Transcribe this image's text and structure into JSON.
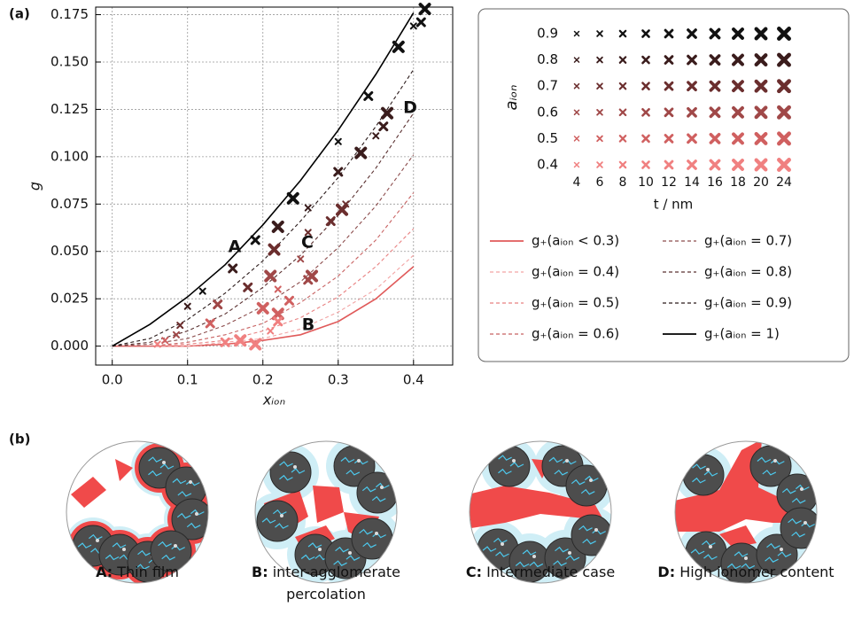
{
  "panel_a_label": "(a)",
  "panel_b_label": "(b)",
  "chart_data": {
    "type": "line",
    "x_label": "xᵢₒₙ",
    "y_label": "g",
    "x": [
      0,
      0.05,
      0.1,
      0.15,
      0.2,
      0.25,
      0.3,
      0.35,
      0.4
    ],
    "xlim": [
      -0.022,
      0.452
    ],
    "ylim": [
      -0.01,
      0.179
    ],
    "xticks": [
      {
        "value": 0,
        "label": "0.0"
      },
      0.1,
      0.2,
      0.3,
      0.4
    ],
    "yticks": [
      {
        "value": 0,
        "label": "0.000"
      },
      {
        "value": 0.025,
        "label": "0.025"
      },
      {
        "value": 0.05,
        "label": "0.050"
      },
      {
        "value": 0.075,
        "label": "0.075"
      },
      {
        "value": 0.1,
        "label": "0.100"
      },
      {
        "value": 0.125,
        "label": "0.125"
      },
      {
        "value": 0.15,
        "label": "0.150"
      },
      {
        "value": 0.175,
        "label": "0.175"
      }
    ],
    "grid": true,
    "series": [
      {
        "name": "g₊(aᵢₒₙ < 0.3)",
        "color": "#e05a5a",
        "style": "solid",
        "values": [
          0,
          0,
          0,
          0.001,
          0.003,
          0.006,
          0.013,
          0.025,
          0.042
        ]
      },
      {
        "name": "g₊(aᵢₒₙ = 0.4)",
        "color": "#f2a3a3",
        "style": "dashed",
        "values": [
          0,
          0,
          0,
          0.002,
          0.004,
          0.009,
          0.018,
          0.03,
          0.048
        ]
      },
      {
        "name": "g₊(aᵢₒₙ = 0.5)",
        "color": "#e88080",
        "style": "dashed",
        "values": [
          0,
          0,
          0.001,
          0.003,
          0.008,
          0.015,
          0.026,
          0.042,
          0.062
        ]
      },
      {
        "name": "g₊(aᵢₒₙ = 0.6)",
        "color": "#c86262",
        "style": "dashed",
        "values": [
          0,
          0,
          0.002,
          0.006,
          0.012,
          0.023,
          0.037,
          0.056,
          0.081
        ]
      },
      {
        "name": "g₊(aᵢₒₙ = 0.7)",
        "color": "#8c4c4c",
        "style": "dashed",
        "values": [
          0,
          0.001,
          0.004,
          0.011,
          0.021,
          0.034,
          0.052,
          0.074,
          0.101
        ]
      },
      {
        "name": "g₊(aᵢₒₙ = 0.8)",
        "color": "#5a3030",
        "style": "dashed",
        "values": [
          0,
          0.002,
          0.008,
          0.017,
          0.031,
          0.048,
          0.069,
          0.094,
          0.123
        ]
      },
      {
        "name": "g₊(aᵢₒₙ = 0.9)",
        "color": "#2a1a1a",
        "style": "dashed",
        "values": [
          0,
          0.004,
          0.014,
          0.028,
          0.045,
          0.066,
          0.089,
          0.116,
          0.146
        ]
      },
      {
        "name": "g₊(aᵢₒₙ = 1)",
        "color": "#000000",
        "style": "solid",
        "values": [
          0,
          0.0115,
          0.026,
          0.043,
          0.064,
          0.0875,
          0.114,
          0.1435,
          0.176
        ]
      }
    ],
    "points": [
      {
        "color": "#111111",
        "x": [
          0.12,
          0.19,
          0.24,
          0.3,
          0.34,
          0.38,
          0.4,
          0.41,
          0.415
        ],
        "y": [
          0.029,
          0.056,
          0.078,
          0.108,
          0.132,
          0.158,
          0.169,
          0.171,
          0.178
        ]
      },
      {
        "color": "#3a1c1c",
        "x": [
          0.1,
          0.16,
          0.22,
          0.26,
          0.3,
          0.33,
          0.35,
          0.36,
          0.365
        ],
        "y": [
          0.021,
          0.041,
          0.063,
          0.073,
          0.092,
          0.102,
          0.111,
          0.116,
          0.123
        ]
      },
      {
        "color": "#6b2e2e",
        "x": [
          0.09,
          0.18,
          0.215,
          0.26,
          0.29,
          0.305,
          0.31
        ],
        "y": [
          0.011,
          0.031,
          0.051,
          0.06,
          0.066,
          0.072,
          0.075
        ]
      },
      {
        "color": "#a04848",
        "x": [
          0.085,
          0.14,
          0.21,
          0.25,
          0.26,
          0.265
        ],
        "y": [
          0.006,
          0.022,
          0.037,
          0.046,
          0.035,
          0.037
        ]
      },
      {
        "color": "#d06060",
        "x": [
          0.07,
          0.13,
          0.2,
          0.22,
          0.235,
          0.22
        ],
        "y": [
          0.003,
          0.012,
          0.02,
          0.03,
          0.024,
          0.017
        ]
      },
      {
        "color": "#f08080",
        "x": [
          0.06,
          0.15,
          0.17,
          0.21,
          0.22,
          0.19
        ],
        "y": [
          0.001,
          0.002,
          0.003,
          0.008,
          0.013,
          0.001
        ]
      }
    ],
    "annotations": [
      "A",
      "B",
      "C",
      "D"
    ],
    "marker_legend": {
      "row_title": "aᵢₒₙ",
      "col_title": "t / nm",
      "rows": [
        0.9,
        0.8,
        0.7,
        0.6,
        0.5,
        0.4
      ],
      "cols": [
        4,
        6,
        8,
        10,
        12,
        14,
        16,
        18,
        20,
        24
      ]
    }
  },
  "panel_b": [
    {
      "letter": "A:",
      "caption": [
        "Thin film"
      ]
    },
    {
      "letter": "B:",
      "caption": [
        "inter-agglomerate",
        "percolation"
      ]
    },
    {
      "letter": "C:",
      "caption": [
        "Intermediate case"
      ]
    },
    {
      "letter": "D:",
      "caption": [
        "High ionomer content"
      ]
    }
  ]
}
